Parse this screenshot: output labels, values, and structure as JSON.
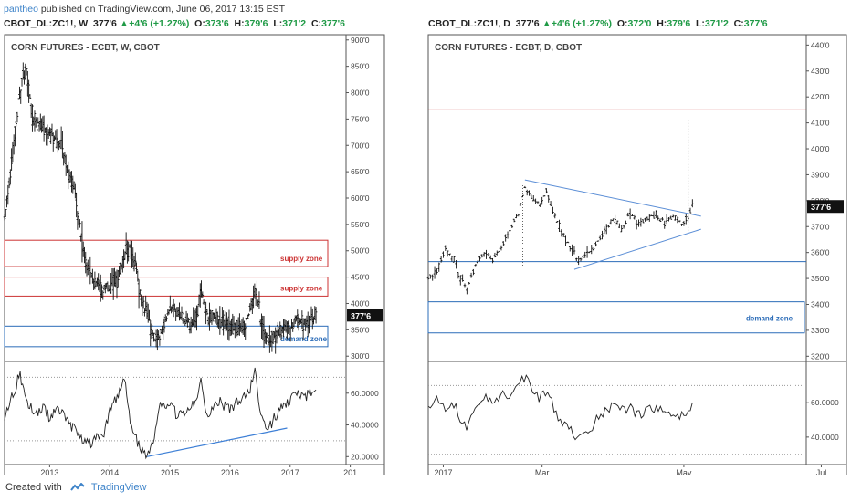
{
  "header": {
    "author": "pantheo",
    "published_text": "published on TradingView.com, June 06, 2017 13:15 EST"
  },
  "left_ohlc": {
    "symbol": "CBOT_DL:ZC1!, W",
    "last": "377'6",
    "change": "+4'6 (+1.27%)",
    "o_label": "O:",
    "o": "373'6",
    "h_label": "H:",
    "h": "379'6",
    "l_label": "L:",
    "l": "371'2",
    "c_label": "C:",
    "c": "377'6"
  },
  "right_ohlc": {
    "symbol": "CBOT_DL:ZC1!, D",
    "last": "377'6",
    "change": "+4'6 (+1.27%)",
    "o_label": "O:",
    "o": "372'0",
    "h_label": "H:",
    "h": "379'6",
    "l_label": "L:",
    "l": "371'2",
    "c_label": "C:",
    "c": "377'6"
  },
  "footer": {
    "created_with": "Created with",
    "brand": "TradingView"
  },
  "colors": {
    "accent": "#3d83c9",
    "up": "#1f9a46",
    "supply": "#cc3333",
    "demand": "#2b6cb8",
    "trend": "#5b8ed6"
  },
  "chart_data": [
    {
      "type": "candlestick",
      "title": "CORN FUTURES - ECBT, W, CBOT",
      "timeframe": "weekly",
      "x_tick_labels": [
        "2013",
        "2014",
        "2015",
        "2016",
        "2017",
        "201"
      ],
      "y_tick_labels": [
        "300'0",
        "350'0",
        "400'0",
        "450'0",
        "500'0",
        "550'0",
        "600'0",
        "650'0",
        "700'0",
        "750'0",
        "800'0",
        "850'0",
        "900'0"
      ],
      "ylim": [
        290,
        910
      ],
      "last_price_label": "377'6",
      "price_path": [
        [
          2012.25,
          560
        ],
        [
          2012.45,
          750
        ],
        [
          2012.55,
          830
        ],
        [
          2012.62,
          835
        ],
        [
          2012.72,
          750
        ],
        [
          2012.85,
          740
        ],
        [
          2012.95,
          720
        ],
        [
          2013.1,
          715
        ],
        [
          2013.2,
          700
        ],
        [
          2013.3,
          650
        ],
        [
          2013.42,
          620
        ],
        [
          2013.5,
          540
        ],
        [
          2013.62,
          470
        ],
        [
          2013.75,
          440
        ],
        [
          2013.88,
          425
        ],
        [
          2014.0,
          430
        ],
        [
          2014.12,
          445
        ],
        [
          2014.25,
          490
        ],
        [
          2014.33,
          510
        ],
        [
          2014.42,
          470
        ],
        [
          2014.5,
          420
        ],
        [
          2014.58,
          390
        ],
        [
          2014.7,
          345
        ],
        [
          2014.78,
          330
        ],
        [
          2014.88,
          350
        ],
        [
          2015.0,
          390
        ],
        [
          2015.12,
          385
        ],
        [
          2015.25,
          370
        ],
        [
          2015.35,
          360
        ],
        [
          2015.45,
          380
        ],
        [
          2015.52,
          425
        ],
        [
          2015.6,
          380
        ],
        [
          2015.72,
          375
        ],
        [
          2015.85,
          365
        ],
        [
          2016.0,
          360
        ],
        [
          2016.12,
          355
        ],
        [
          2016.25,
          365
        ],
        [
          2016.35,
          395
        ],
        [
          2016.42,
          425
        ],
        [
          2016.5,
          380
        ],
        [
          2016.58,
          335
        ],
        [
          2016.66,
          330
        ],
        [
          2016.75,
          340
        ],
        [
          2016.85,
          350
        ],
        [
          2017.0,
          355
        ],
        [
          2017.12,
          370
        ],
        [
          2017.25,
          365
        ],
        [
          2017.35,
          372
        ],
        [
          2017.43,
          377.75
        ]
      ],
      "zones": [
        {
          "label": "supply zone",
          "low": 470,
          "high": 520,
          "color": "#cc3333"
        },
        {
          "label": "supply zone",
          "low": 414,
          "high": 450,
          "color": "#cc3333"
        },
        {
          "label": "demand zone",
          "low": 318,
          "high": 357,
          "color": "#2b6cb8"
        }
      ],
      "rsi": {
        "y_tick_labels": [
          "20.0000",
          "40.0000",
          "60.0000"
        ],
        "ylim": [
          15,
          80
        ],
        "guide_levels": [
          70,
          30
        ],
        "path": [
          [
            2012.25,
            45
          ],
          [
            2012.4,
            60
          ],
          [
            2012.5,
            72
          ],
          [
            2012.6,
            55
          ],
          [
            2012.75,
            48
          ],
          [
            2012.9,
            50
          ],
          [
            2013.0,
            45
          ],
          [
            2013.15,
            50
          ],
          [
            2013.3,
            42
          ],
          [
            2013.45,
            35
          ],
          [
            2013.6,
            28
          ],
          [
            2013.75,
            30
          ],
          [
            2013.9,
            35
          ],
          [
            2014.0,
            50
          ],
          [
            2014.15,
            60
          ],
          [
            2014.25,
            68
          ],
          [
            2014.35,
            40
          ],
          [
            2014.45,
            30
          ],
          [
            2014.55,
            22
          ],
          [
            2014.62,
            19
          ],
          [
            2014.75,
            35
          ],
          [
            2014.85,
            55
          ],
          [
            2015.0,
            52
          ],
          [
            2015.15,
            45
          ],
          [
            2015.3,
            50
          ],
          [
            2015.42,
            55
          ],
          [
            2015.52,
            70
          ],
          [
            2015.62,
            45
          ],
          [
            2015.8,
            55
          ],
          [
            2016.0,
            50
          ],
          [
            2016.2,
            56
          ],
          [
            2016.32,
            60
          ],
          [
            2016.42,
            75
          ],
          [
            2016.5,
            45
          ],
          [
            2016.62,
            37
          ],
          [
            2016.8,
            48
          ],
          [
            2017.0,
            55
          ],
          [
            2017.1,
            62
          ],
          [
            2017.25,
            58
          ],
          [
            2017.43,
            62
          ]
        ],
        "trendline": [
          [
            2014.62,
            20
          ],
          [
            2016.95,
            38
          ]
        ]
      }
    },
    {
      "type": "candlestick",
      "title": "CORN FUTURES - ECBT, D, CBOT",
      "timeframe": "daily",
      "x_tick_labels": [
        "2017",
        "Mar",
        "May",
        "Jul"
      ],
      "y_tick_labels": [
        "320'0",
        "330'0",
        "340'0",
        "350'0",
        "360'0",
        "370'0",
        "380'0",
        "390'0",
        "400'0",
        "410'0",
        "420'0",
        "430'0",
        "440'0"
      ],
      "ylim": [
        318,
        444
      ],
      "last_price_label": "377'6",
      "price_path": [
        [
          0,
          350
        ],
        [
          4,
          352
        ],
        [
          8,
          362
        ],
        [
          12,
          357
        ],
        [
          15,
          350
        ],
        [
          18,
          346
        ],
        [
          22,
          355
        ],
        [
          26,
          360
        ],
        [
          30,
          357
        ],
        [
          34,
          362
        ],
        [
          38,
          368
        ],
        [
          42,
          375
        ],
        [
          45,
          385
        ],
        [
          48,
          382
        ],
        [
          52,
          378
        ],
        [
          55,
          384
        ],
        [
          58,
          376
        ],
        [
          62,
          368
        ],
        [
          66,
          362
        ],
        [
          70,
          357
        ],
        [
          74,
          359
        ],
        [
          78,
          363
        ],
        [
          82,
          368
        ],
        [
          86,
          373
        ],
        [
          90,
          369
        ],
        [
          94,
          375
        ],
        [
          98,
          371
        ],
        [
          102,
          373
        ],
        [
          106,
          375
        ],
        [
          110,
          371
        ],
        [
          114,
          374
        ],
        [
          118,
          371
        ],
        [
          121,
          374
        ],
        [
          123,
          377.75
        ]
      ],
      "zones": [
        {
          "label": "demand zone",
          "low": 329,
          "high": 341,
          "color": "#2b6cb8"
        }
      ],
      "horizontal_lines": [
        {
          "value": 415,
          "color": "#cc3333"
        },
        {
          "value": 356.5,
          "color": "#2b6cb8"
        }
      ],
      "triangle": {
        "upper": [
          [
            45,
            388
          ],
          [
            127,
            374
          ]
        ],
        "lower": [
          [
            68,
            353.5
          ],
          [
            127,
            369
          ]
        ]
      },
      "vertical_markers": [
        {
          "x": 44,
          "low": 354.5,
          "high": 387
        },
        {
          "x": 121,
          "low": 368,
          "high": 411
        }
      ],
      "rsi": {
        "y_tick_labels": [
          "40.0000",
          "60.0000"
        ],
        "ylim": [
          24,
          84
        ],
        "guide_levels": [
          70,
          30
        ],
        "path": [
          [
            0,
            55
          ],
          [
            4,
            62
          ],
          [
            8,
            58
          ],
          [
            12,
            60
          ],
          [
            15,
            50
          ],
          [
            18,
            45
          ],
          [
            22,
            55
          ],
          [
            26,
            62
          ],
          [
            30,
            60
          ],
          [
            34,
            65
          ],
          [
            38,
            62
          ],
          [
            42,
            70
          ],
          [
            45,
            76
          ],
          [
            48,
            68
          ],
          [
            52,
            62
          ],
          [
            55,
            68
          ],
          [
            58,
            58
          ],
          [
            62,
            50
          ],
          [
            66,
            45
          ],
          [
            70,
            38
          ],
          [
            74,
            42
          ],
          [
            78,
            50
          ],
          [
            82,
            55
          ],
          [
            86,
            60
          ],
          [
            90,
            55
          ],
          [
            94,
            58
          ],
          [
            98,
            52
          ],
          [
            102,
            56
          ],
          [
            106,
            58
          ],
          [
            110,
            52
          ],
          [
            114,
            55
          ],
          [
            118,
            52
          ],
          [
            121,
            56
          ],
          [
            123,
            60
          ]
        ]
      }
    }
  ]
}
